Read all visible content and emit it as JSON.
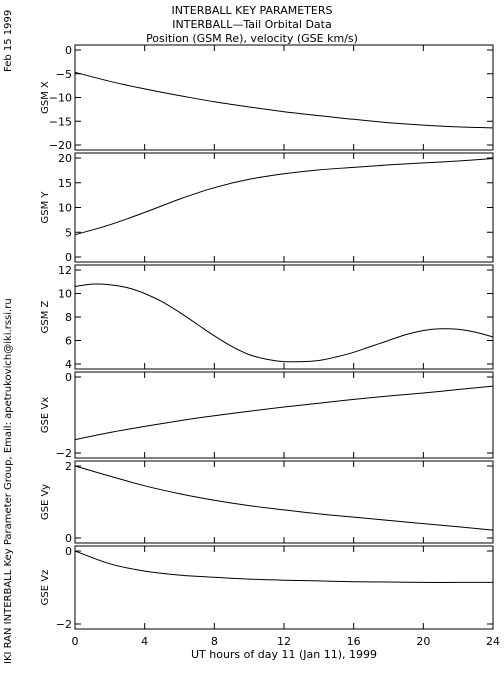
{
  "header": {
    "title_lines": [
      "INTERBALL KEY PARAMETERS",
      "INTERBALL—Tail Orbital Data",
      "Position (GSM Re), velocity (GSE km/s)"
    ],
    "date_label": "Feb 15 1999",
    "credit": "IKI RAN INTERBALL Key Parameter Group, Email: apetrukovich@iki.rssi.ru"
  },
  "colors": {
    "background": "#ffffff",
    "ink": "#000000"
  },
  "chart_data": [
    {
      "type": "line",
      "ylabel": "GSM X",
      "ylim": [
        -20,
        0
      ],
      "yticks": [
        0,
        -5,
        -10,
        -15,
        -20
      ],
      "ytick_labels": [
        "0",
        "−5",
        "−10",
        "−15",
        "−20"
      ],
      "x": [
        0,
        2,
        4,
        6,
        8,
        10,
        12,
        14,
        16,
        18,
        20,
        22,
        24
      ],
      "series": [
        {
          "values": [
            -4.7,
            -6.6,
            -8.2,
            -9.6,
            -10.9,
            -12.0,
            -13.0,
            -13.8,
            -14.6,
            -15.3,
            -15.8,
            -16.2,
            -16.4
          ]
        }
      ]
    },
    {
      "type": "line",
      "ylabel": "GSM Y",
      "ylim": [
        0,
        20
      ],
      "yticks": [
        0,
        5,
        10,
        15,
        20
      ],
      "ytick_labels": [
        "0",
        "5",
        "10",
        "15",
        "20"
      ],
      "x": [
        0,
        2,
        4,
        6,
        8,
        10,
        12,
        14,
        16,
        18,
        20,
        22,
        24
      ],
      "series": [
        {
          "values": [
            4.5,
            6.5,
            9.0,
            11.7,
            14.0,
            15.7,
            16.8,
            17.6,
            18.1,
            18.6,
            19.0,
            19.4,
            19.9
          ]
        }
      ]
    },
    {
      "type": "line",
      "ylabel": "GSM Z",
      "ylim": [
        4,
        12
      ],
      "yticks": [
        4,
        6,
        8,
        10,
        12
      ],
      "ytick_labels": [
        "4",
        "6",
        "8",
        "10",
        "12"
      ],
      "x": [
        0,
        1,
        2,
        3,
        4,
        5,
        6,
        7,
        8,
        9,
        10,
        11,
        12,
        13,
        14,
        15,
        16,
        17,
        18,
        19,
        20,
        21,
        22,
        23,
        24
      ],
      "series": [
        {
          "values": [
            10.6,
            10.8,
            10.75,
            10.5,
            10.0,
            9.3,
            8.4,
            7.4,
            6.4,
            5.5,
            4.8,
            4.4,
            4.2,
            4.2,
            4.3,
            4.6,
            5.0,
            5.5,
            6.0,
            6.5,
            6.85,
            7.0,
            6.95,
            6.7,
            6.3
          ]
        }
      ]
    },
    {
      "type": "line",
      "ylabel": "GSE Vx",
      "ylim": [
        -2,
        0
      ],
      "yticks": [
        0,
        -2
      ],
      "ytick_labels": [
        "0",
        "−2"
      ],
      "x": [
        0,
        2,
        4,
        6,
        8,
        10,
        12,
        14,
        16,
        18,
        20,
        22,
        24
      ],
      "series": [
        {
          "values": [
            -1.65,
            -1.46,
            -1.3,
            -1.15,
            -1.02,
            -0.9,
            -0.79,
            -0.69,
            -0.59,
            -0.5,
            -0.42,
            -0.33,
            -0.24
          ]
        }
      ]
    },
    {
      "type": "line",
      "ylabel": "GSE Vy",
      "ylim": [
        0,
        2
      ],
      "yticks": [
        0,
        2
      ],
      "ytick_labels": [
        "0",
        "2"
      ],
      "x": [
        0,
        2,
        4,
        6,
        8,
        10,
        12,
        14,
        16,
        18,
        20,
        22,
        24
      ],
      "series": [
        {
          "values": [
            2.0,
            1.72,
            1.45,
            1.23,
            1.05,
            0.9,
            0.78,
            0.67,
            0.58,
            0.49,
            0.4,
            0.31,
            0.22
          ]
        }
      ]
    },
    {
      "type": "line",
      "ylabel": "GSE Vz",
      "ylim": [
        -2,
        0
      ],
      "yticks": [
        0,
        -2
      ],
      "ytick_labels": [
        "0",
        "−2"
      ],
      "x": [
        0,
        2,
        4,
        6,
        8,
        10,
        12,
        14,
        16,
        18,
        20,
        22,
        24
      ],
      "series": [
        {
          "values": [
            0.0,
            -0.35,
            -0.55,
            -0.66,
            -0.72,
            -0.77,
            -0.8,
            -0.82,
            -0.84,
            -0.85,
            -0.86,
            -0.86,
            -0.86
          ]
        }
      ]
    }
  ],
  "xaxis": {
    "xlim": [
      0,
      24
    ],
    "ticks": [
      0,
      4,
      8,
      12,
      16,
      20,
      24
    ],
    "tick_labels": [
      "0",
      "4",
      "8",
      "12",
      "16",
      "20",
      "24"
    ],
    "label": "UT hours of day  11 (Jan 11), 1999"
  }
}
